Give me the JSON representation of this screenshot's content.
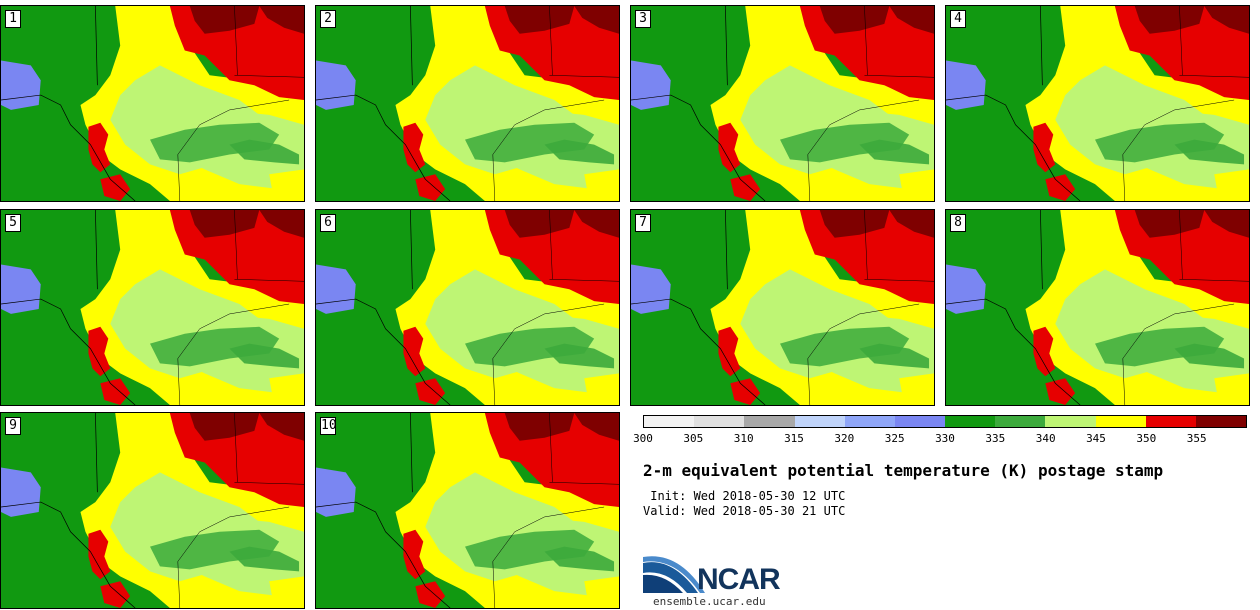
{
  "panels": [
    {
      "number": "1"
    },
    {
      "number": "2"
    },
    {
      "number": "3"
    },
    {
      "number": "4"
    },
    {
      "number": "5"
    },
    {
      "number": "6"
    },
    {
      "number": "7"
    },
    {
      "number": "8"
    },
    {
      "number": "9"
    },
    {
      "number": "10"
    }
  ],
  "colorbar": {
    "colors": [
      "#f2f2f2",
      "#e0e0e0",
      "#a8a8a8",
      "#c0d4fa",
      "#8fa6f8",
      "#7a86f2",
      "#119911",
      "#3caa3c",
      "#bef574",
      "#ffff00",
      "#e60000",
      "#7f0000"
    ],
    "ticks": [
      "300",
      "305",
      "310",
      "315",
      "320",
      "325",
      "330",
      "335",
      "340",
      "345",
      "350",
      "355"
    ]
  },
  "map_colors": {
    "green_dark": "#119911",
    "green_mid": "#3caa3c",
    "light_green": "#bef574",
    "yellow": "#ffff00",
    "red": "#e60000",
    "dark_red": "#7f0000",
    "blue": "#7a86f2"
  },
  "title": "2-m equivalent potential temperature (K) postage stamp",
  "init": " Init: Wed 2018-05-30 12 UTC",
  "valid": "Valid: Wed 2018-05-30 21 UTC",
  "logo": {
    "text": "NCAR",
    "site": "ensemble.ucar.edu"
  }
}
